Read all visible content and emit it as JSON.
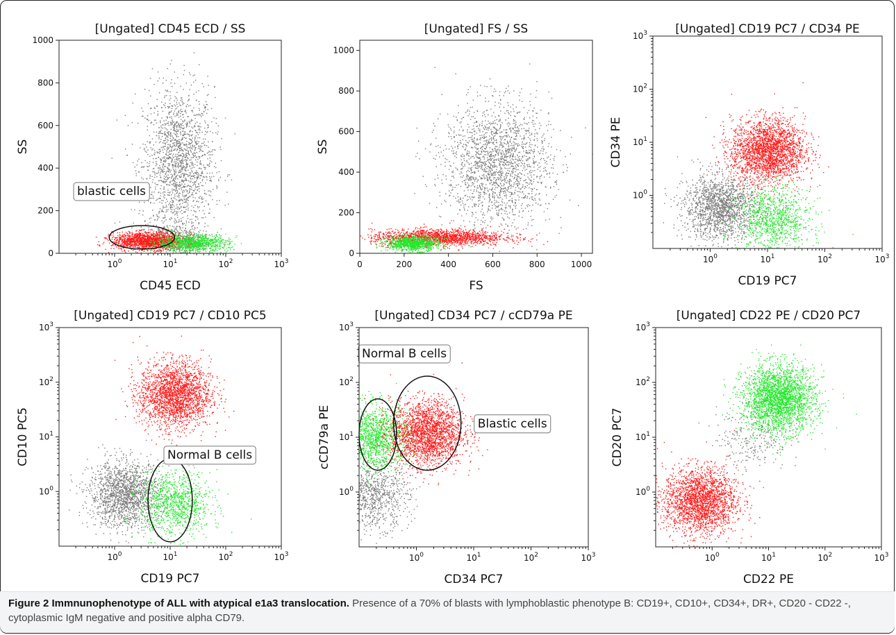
{
  "figure": {
    "caption_title": "Figure 2 Immnunophenotype of ALL with atypical e1a3 translocation.",
    "caption_text": " Presence of a 70% of blasts with lymphoblastic phenotype B: CD19+, CD10+, CD34+, DR+, CD20 - CD22 -, cytoplasmic IgM negative and positive alpha CD79."
  },
  "colors": {
    "red": "#ff1a1a",
    "green": "#22e82a",
    "gray": "#7a7a7a",
    "axis": "#222222"
  },
  "chart_data": [
    {
      "type": "scatter",
      "title": "[Ungated] CD45 ECD / SS",
      "xlabel": "CD45 ECD",
      "ylabel": "SS",
      "xscale": "log",
      "xlim": [
        0.1,
        1000
      ],
      "xticks": [
        1,
        10,
        100,
        1000
      ],
      "yscale": "linear",
      "ylim": [
        0,
        1000
      ],
      "yticks": [
        0,
        200,
        400,
        600,
        800,
        1000
      ],
      "clusters": [
        {
          "color": "gray",
          "n": 1800,
          "x": "log-normal center 14",
          "y_center": 420,
          "y_spread": 180
        },
        {
          "color": "gray",
          "n": 500,
          "x": "log-normal center 12",
          "y_center": 60,
          "y_spread": 40
        },
        {
          "color": "red",
          "n": 1500,
          "x": "log-normal center 4",
          "y_center": 60,
          "y_spread": 20
        },
        {
          "color": "green",
          "n": 900,
          "x": "log-normal center 25",
          "y_center": 50,
          "y_spread": 20
        }
      ],
      "gates": [
        {
          "label": "blastic cells",
          "x_range": [
            0.8,
            12
          ],
          "y_range": [
            20,
            130
          ]
        }
      ]
    },
    {
      "type": "scatter",
      "title": "[Ungated] FS / SS",
      "xlabel": "FS",
      "ylabel": "SS",
      "xscale": "linear",
      "xlim": [
        0,
        1050
      ],
      "xticks": [
        0,
        200,
        400,
        600,
        800,
        1000
      ],
      "yscale": "linear",
      "ylim": [
        0,
        1050
      ],
      "yticks": [
        0,
        200,
        400,
        600,
        800,
        1000
      ],
      "clusters": [
        {
          "color": "gray",
          "n": 2000,
          "x_center": 620,
          "x_spread": 120,
          "y_center": 440,
          "y_spread": 150
        },
        {
          "color": "red",
          "n": 1600,
          "x_center": 350,
          "x_spread": 150,
          "y_center": 80,
          "y_spread": 20
        },
        {
          "color": "green",
          "n": 900,
          "x_center": 240,
          "x_spread": 60,
          "y_center": 50,
          "y_spread": 18
        }
      ],
      "gates": []
    },
    {
      "type": "scatter",
      "title": "[Ungated] CD19 PC7 / CD34 PE",
      "xlabel": "CD19 PC7",
      "ylabel": "CD34 PE",
      "xscale": "log",
      "xlim": [
        0.1,
        1000
      ],
      "xticks": [
        1,
        10,
        100,
        1000
      ],
      "yscale": "log",
      "ylim": [
        0.1,
        1000
      ],
      "yticks": [
        1,
        10,
        100,
        1000
      ],
      "clusters": [
        {
          "color": "gray",
          "n": 1700,
          "x_center": 1.5,
          "y_center": 0.6
        },
        {
          "color": "red",
          "n": 2400,
          "x_center": 10,
          "y_center": 7
        },
        {
          "color": "green",
          "n": 1000,
          "x_center": 13,
          "y_center": 0.35
        }
      ],
      "gates": []
    },
    {
      "type": "scatter",
      "title": "[Ungated] CD19 PC7 / CD10 PC5",
      "xlabel": "CD19 PC7",
      "ylabel": "CD10 PC5",
      "xscale": "log",
      "xlim": [
        0.1,
        1000
      ],
      "xticks": [
        1,
        10,
        100,
        1000
      ],
      "yscale": "log",
      "ylim": [
        0.1,
        1000
      ],
      "yticks": [
        1,
        10,
        100,
        1000
      ],
      "clusters": [
        {
          "color": "gray",
          "n": 1700,
          "x_center": 1.5,
          "y_center": 0.9
        },
        {
          "color": "red",
          "n": 2200,
          "x_center": 12,
          "y_center": 60
        },
        {
          "color": "green",
          "n": 1000,
          "x_center": 12,
          "y_center": 0.6
        }
      ],
      "gates": [
        {
          "label": "Normal B cells",
          "x_range": [
            4,
            25
          ],
          "y_range": [
            0.12,
            4
          ]
        }
      ]
    },
    {
      "type": "scatter",
      "title": "[Ungated] CD34 PC7 / cCD79a PE",
      "xlabel": "CD34 PC7",
      "ylabel": "cCD79a PE",
      "xscale": "log",
      "xlim": [
        0.1,
        1000
      ],
      "xticks": [
        1,
        10,
        100,
        1000
      ],
      "yscale": "log",
      "ylim": [
        0.1,
        1000
      ],
      "yticks": [
        1,
        10,
        100,
        1000
      ],
      "clusters": [
        {
          "color": "gray",
          "n": 900,
          "x_center": 0.17,
          "y_center": 0.9
        },
        {
          "color": "green",
          "n": 1400,
          "x_center": 0.18,
          "y_center": 10
        },
        {
          "color": "red",
          "n": 2200,
          "x_center": 1.5,
          "y_center": 12
        }
      ],
      "gates": [
        {
          "label": "Normal B cells",
          "x_range": [
            0.1,
            0.45
          ],
          "y_range": [
            2.5,
            50
          ]
        },
        {
          "label": "Blastic cells",
          "x_range": [
            0.4,
            6
          ],
          "y_range": [
            2.5,
            130
          ]
        }
      ]
    },
    {
      "type": "scatter",
      "title": "[Ungated] CD22 PE / CD20 PC7",
      "xlabel": "CD22 PE",
      "ylabel": "CD20 PC7",
      "xscale": "log",
      "xlim": [
        0.1,
        1000
      ],
      "xticks": [
        1,
        10,
        100,
        1000
      ],
      "yscale": "log",
      "ylim": [
        0.1,
        1000
      ],
      "yticks": [
        1,
        10,
        100,
        1000
      ],
      "clusters": [
        {
          "color": "green",
          "n": 2600,
          "x_center": 15,
          "y_center": 50
        },
        {
          "color": "red",
          "n": 2200,
          "x_center": 0.6,
          "y_center": 0.7
        },
        {
          "color": "gray",
          "n": 250,
          "x_center": 5,
          "y_center": 10
        }
      ],
      "gates": []
    }
  ],
  "tick_text": {
    "lin": {
      "0": "0",
      "200": "200",
      "400": "400",
      "600": "600",
      "800": "800",
      "1000": "1000"
    },
    "log": {
      "1": "10",
      "10": "10",
      "100": "10",
      "1000": "10"
    },
    "log_exp": {
      "1": "0",
      "10": "1",
      "100": "2",
      "1000": "3"
    }
  }
}
